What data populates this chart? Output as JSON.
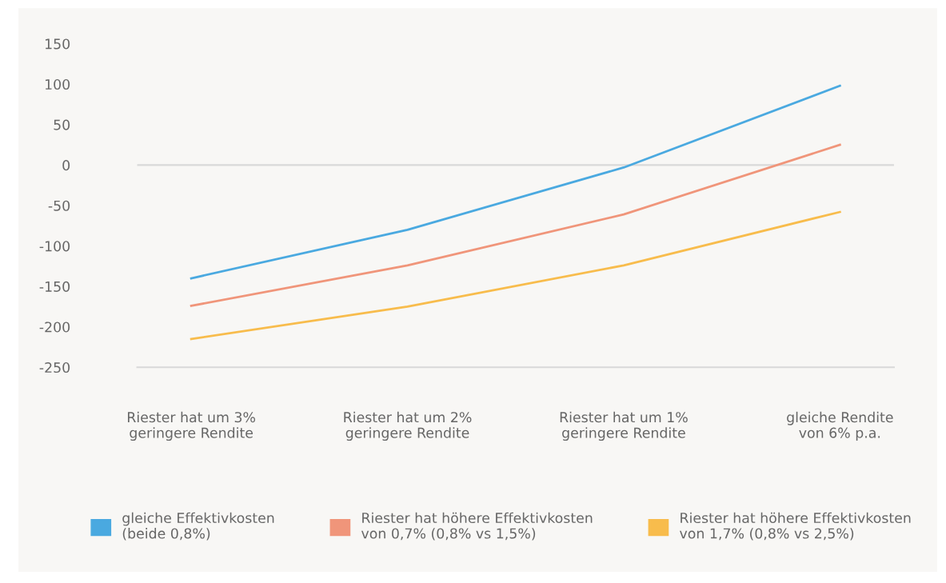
{
  "chart_data": {
    "type": "line",
    "categories": [
      "Riester hat um 3%\ngeringere Rendite",
      "Riester hat um 2%\ngeringere Rendite",
      "Riester hat um 1%\ngeringere Rendite",
      "gleiche Rendite\nvon 6% p.a."
    ],
    "series": [
      {
        "name": "gleiche Effektivkosten\n(beide 0,8%)",
        "color": "#4aa9e0",
        "values": [
          -140,
          -80,
          -3,
          98
        ]
      },
      {
        "name": "Riester hat höhere Effektivkosten\nvon 0,7% (0,8% vs 1,5%)",
        "color": "#f0957a",
        "values": [
          -174,
          -124,
          -61,
          25
        ]
      },
      {
        "name": "Riester hat höhere Effektivkosten\nvon 1,7% (0,8% vs 2,5%)",
        "color": "#f8bc4c",
        "values": [
          -215,
          -175,
          -124,
          -58
        ]
      }
    ],
    "ylim": [
      -250,
      150
    ],
    "yticks": [
      -250,
      -200,
      -150,
      -100,
      -50,
      0,
      50,
      100,
      150
    ],
    "ref_lines": [
      {
        "axis": "y",
        "value": 0,
        "color": "#d9d9d9"
      }
    ],
    "grid": false,
    "legend": "bottom",
    "marker": "none",
    "line_style": "solid"
  }
}
